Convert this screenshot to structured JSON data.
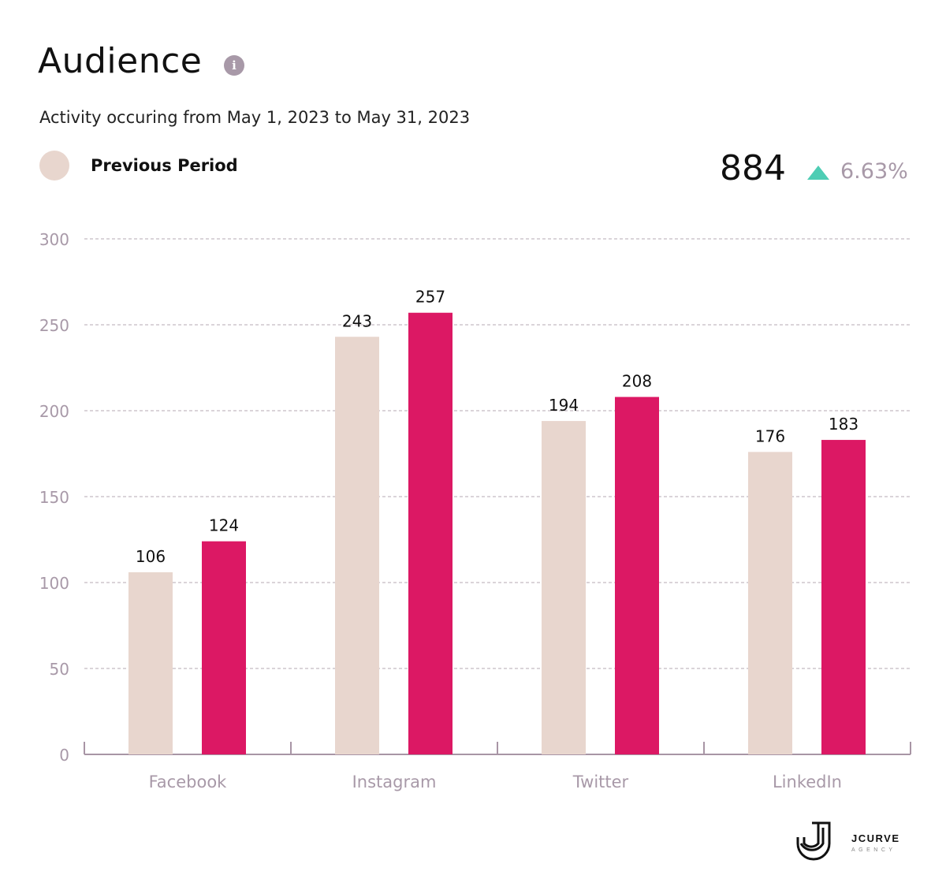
{
  "header": {
    "title": "Audience",
    "info_icon": "info-icon",
    "subtitle": "Activity occuring from May 1, 2023 to May 31, 2023"
  },
  "legend": {
    "label": "Previous Period",
    "color": "#e8d6ce"
  },
  "summary": {
    "total": "884",
    "trend_icon": "triangle-up-icon",
    "trend_color": "#4ecdb4",
    "change": "6.63%"
  },
  "logo": {
    "text": "JCURVE",
    "subtext": "AGENCY"
  },
  "chart_data": {
    "type": "bar",
    "categories": [
      "Facebook",
      "Instagram",
      "Twitter",
      "LinkedIn"
    ],
    "series": [
      {
        "name": "Previous Period",
        "color": "#e8d6ce",
        "values": [
          106,
          243,
          194,
          176
        ]
      },
      {
        "color": "#dc1864",
        "values": [
          124,
          257,
          208,
          183
        ]
      }
    ],
    "ylim": [
      0,
      300
    ],
    "yticks": [
      0,
      50,
      100,
      150,
      200,
      250,
      300
    ],
    "grid": true,
    "legend": "top-left"
  }
}
